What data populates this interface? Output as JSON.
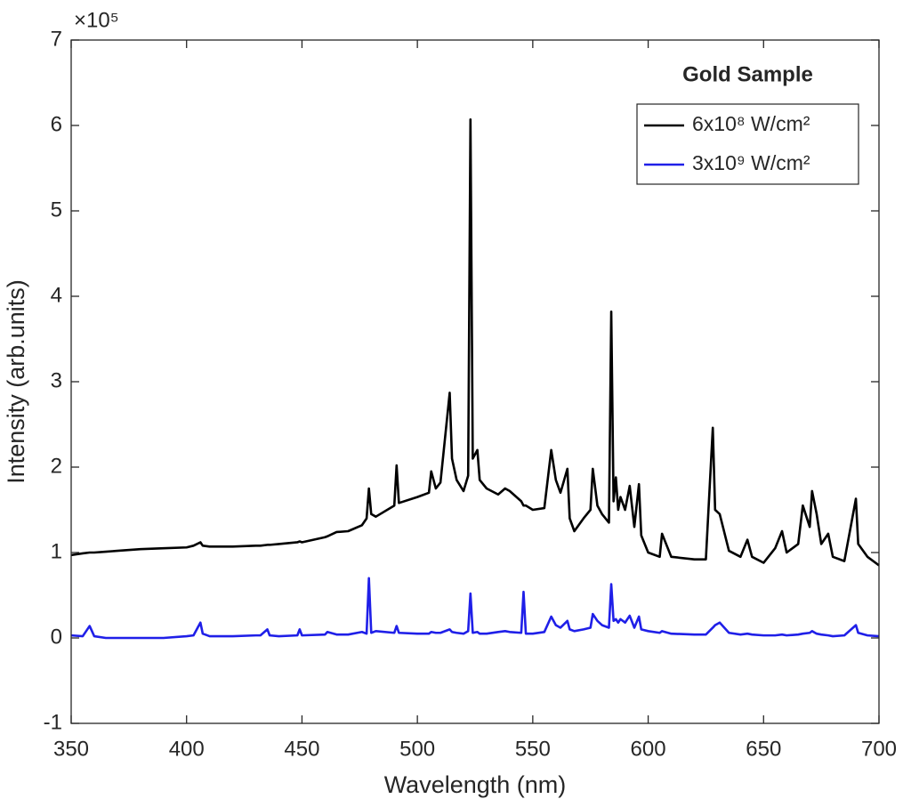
{
  "chart_data": {
    "type": "line",
    "x_label": "Wavelength (nm)",
    "y_label": "Intensity (arb.units)",
    "y_multiplier": "×10⁵",
    "legend_title": "Gold Sample",
    "legend": "upper right",
    "x": [
      350,
      355,
      358,
      360,
      365,
      370,
      380,
      390,
      400,
      403,
      406,
      407,
      410,
      420,
      430,
      432,
      435,
      436,
      440,
      448,
      449,
      450,
      460,
      461,
      465,
      470,
      476,
      478,
      479,
      480,
      482,
      490,
      491,
      492,
      500,
      505,
      506,
      508,
      510,
      514,
      515,
      517,
      520,
      522,
      523,
      524,
      526,
      527,
      530,
      535,
      538,
      540,
      545,
      546,
      547,
      550,
      555,
      558,
      560,
      562,
      565,
      566,
      568,
      572,
      575,
      576,
      578,
      580,
      583,
      584,
      585,
      586,
      587,
      588,
      590,
      592,
      594,
      596,
      597,
      600,
      605,
      606,
      610,
      620,
      625,
      628,
      629,
      631,
      635,
      640,
      643,
      645,
      650,
      655,
      658,
      660,
      665,
      667,
      670,
      671,
      673,
      675,
      678,
      680,
      685,
      690,
      691,
      695,
      700
    ],
    "series": [
      {
        "name": "6x10⁸ W/cm²",
        "color": "#000000",
        "values": [
          0.97,
          0.99,
          1.0,
          1.0,
          1.01,
          1.02,
          1.04,
          1.05,
          1.06,
          1.08,
          1.12,
          1.08,
          1.07,
          1.07,
          1.08,
          1.08,
          1.09,
          1.09,
          1.1,
          1.12,
          1.13,
          1.12,
          1.18,
          1.19,
          1.24,
          1.25,
          1.32,
          1.4,
          1.75,
          1.45,
          1.42,
          1.55,
          2.02,
          1.58,
          1.65,
          1.7,
          1.95,
          1.75,
          1.82,
          2.87,
          2.1,
          1.85,
          1.72,
          1.9,
          6.07,
          2.1,
          2.2,
          1.85,
          1.75,
          1.68,
          1.75,
          1.72,
          1.6,
          1.55,
          1.55,
          1.5,
          1.52,
          2.2,
          1.85,
          1.7,
          1.98,
          1.4,
          1.25,
          1.4,
          1.5,
          1.98,
          1.55,
          1.45,
          1.35,
          3.82,
          1.6,
          1.88,
          1.5,
          1.65,
          1.5,
          1.78,
          1.3,
          1.8,
          1.2,
          1.0,
          0.95,
          1.22,
          0.95,
          0.92,
          0.92,
          2.46,
          1.5,
          1.45,
          1.02,
          0.95,
          1.15,
          0.95,
          0.88,
          1.05,
          1.25,
          1.0,
          1.1,
          1.55,
          1.3,
          1.72,
          1.45,
          1.1,
          1.22,
          0.95,
          0.9,
          1.63,
          1.1,
          0.95,
          0.85
        ]
      },
      {
        "name": "3x10⁹ W/cm²",
        "color": "#1f1fe8",
        "values": [
          0.03,
          0.02,
          0.14,
          0.02,
          0.0,
          0.0,
          0.0,
          0.0,
          0.02,
          0.03,
          0.18,
          0.05,
          0.02,
          0.02,
          0.03,
          0.03,
          0.1,
          0.03,
          0.02,
          0.03,
          0.1,
          0.03,
          0.04,
          0.07,
          0.04,
          0.04,
          0.07,
          0.05,
          0.7,
          0.06,
          0.08,
          0.06,
          0.14,
          0.06,
          0.05,
          0.05,
          0.07,
          0.06,
          0.06,
          0.1,
          0.07,
          0.06,
          0.05,
          0.08,
          0.52,
          0.06,
          0.07,
          0.05,
          0.05,
          0.07,
          0.08,
          0.07,
          0.06,
          0.54,
          0.05,
          0.05,
          0.07,
          0.25,
          0.15,
          0.12,
          0.2,
          0.1,
          0.08,
          0.1,
          0.12,
          0.28,
          0.2,
          0.15,
          0.12,
          0.63,
          0.2,
          0.22,
          0.18,
          0.22,
          0.18,
          0.26,
          0.12,
          0.25,
          0.1,
          0.08,
          0.06,
          0.08,
          0.05,
          0.04,
          0.04,
          0.12,
          0.15,
          0.18,
          0.06,
          0.04,
          0.05,
          0.04,
          0.03,
          0.03,
          0.04,
          0.03,
          0.04,
          0.05,
          0.06,
          0.08,
          0.05,
          0.04,
          0.03,
          0.02,
          0.03,
          0.15,
          0.06,
          0.03,
          0.02
        ]
      }
    ],
    "xlim": [
      350,
      700
    ],
    "xticks": [
      350,
      400,
      450,
      500,
      550,
      600,
      650,
      700
    ],
    "ylim": [
      -1,
      7
    ],
    "yticks": [
      -1,
      0,
      1,
      2,
      3,
      4,
      5,
      6,
      7
    ]
  }
}
